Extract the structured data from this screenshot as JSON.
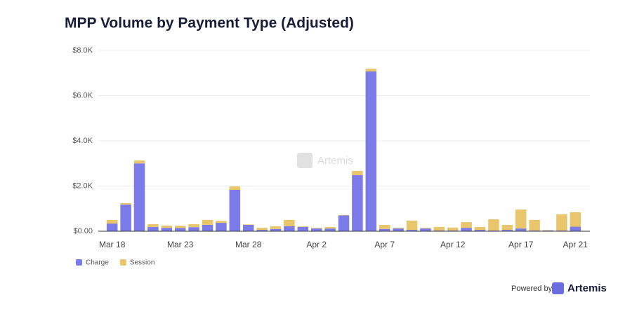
{
  "chart_data": {
    "type": "stacked_bar",
    "title": "MPP Volume by Payment Type (Adjusted)",
    "categories": [
      "Mar 18",
      null,
      null,
      null,
      null,
      "Mar 23",
      null,
      null,
      null,
      null,
      "Mar 28",
      null,
      null,
      null,
      null,
      "Apr 2",
      null,
      null,
      null,
      null,
      "Apr 7",
      null,
      null,
      null,
      null,
      "Apr 12",
      null,
      null,
      null,
      null,
      "Apr 17",
      null,
      null,
      null,
      "Apr 21"
    ],
    "series": [
      {
        "name": "Charge",
        "color": "#7b7ce9",
        "values": [
          340,
          1180,
          3000,
          190,
          150,
          140,
          180,
          280,
          370,
          1830,
          280,
          60,
          100,
          220,
          190,
          120,
          120,
          700,
          2480,
          7070,
          100,
          120,
          60,
          120,
          30,
          30,
          150,
          60,
          30,
          60,
          120,
          30,
          30,
          30,
          200
        ]
      },
      {
        "name": "Session",
        "color": "#e9c66c",
        "values": [
          160,
          60,
          130,
          120,
          100,
          100,
          130,
          220,
          90,
          150,
          20,
          90,
          120,
          280,
          30,
          30,
          70,
          20,
          190,
          120,
          180,
          30,
          410,
          30,
          160,
          130,
          250,
          130,
          500,
          220,
          840,
          470,
          20,
          720,
          640
        ]
      }
    ],
    "ylim": [
      0,
      8000
    ],
    "yticks": [
      {
        "value": 0,
        "label": "$0.00"
      },
      {
        "value": 2000,
        "label": "$2.0K"
      },
      {
        "value": 4000,
        "label": "$4.0K"
      },
      {
        "value": 6000,
        "label": "$6.0K"
      },
      {
        "value": 8000,
        "label": "$8.0K"
      }
    ],
    "grid": true
  },
  "branding": {
    "watermark": "Artemis",
    "powered_by": "Powered by",
    "brand": "Artemis"
  }
}
